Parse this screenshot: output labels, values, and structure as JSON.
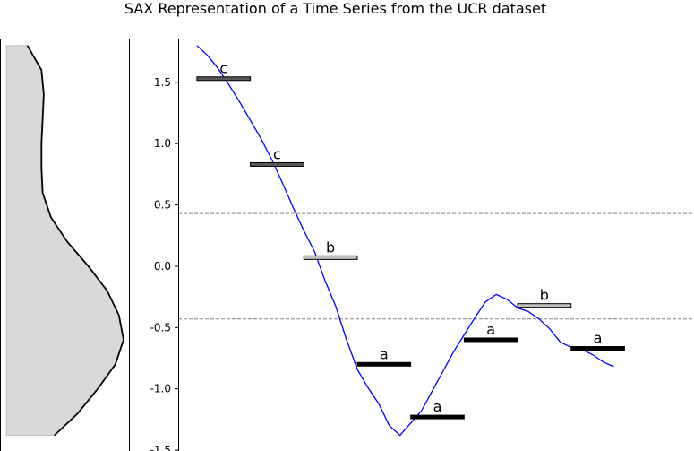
{
  "chart_data": [
    {
      "type": "area",
      "title": "SAX Representation of a Time Series from the UCR dataset",
      "subtype": "marginal-density",
      "colors": {
        "fill": "#d9d9d9",
        "line": "#000000"
      },
      "y": [
        1.8,
        1.6,
        1.4,
        1.2,
        1.0,
        0.8,
        0.6,
        0.4,
        0.2,
        0.0,
        -0.2,
        -0.4,
        -0.6,
        -0.8,
        -1.0,
        -1.2,
        -1.38
      ],
      "density": [
        0.18,
        0.3,
        0.32,
        0.31,
        0.3,
        0.3,
        0.31,
        0.38,
        0.52,
        0.7,
        0.86,
        0.96,
        1.0,
        0.93,
        0.78,
        0.61,
        0.41
      ]
    },
    {
      "type": "line",
      "ylim": [
        -1.5,
        1.85
      ],
      "yticks": [
        -1.5,
        -1.0,
        -0.5,
        0.0,
        0.5,
        1.0,
        1.5
      ],
      "ytick_labels": [
        "-1.5",
        "-1.0",
        "-0.5",
        "0.0",
        "0.5",
        "1.0",
        "1.5"
      ],
      "xlim": [
        -3.5,
        93
      ],
      "grid": false,
      "breakpoints": [
        -0.43,
        0.43
      ],
      "series": [
        {
          "color": "#0000ff",
          "x": [
            0,
            2,
            4,
            6,
            8,
            10,
            12,
            14,
            16,
            18,
            20,
            22,
            24,
            26,
            28,
            30,
            32,
            34,
            36,
            38,
            40,
            42,
            44,
            46,
            47,
            48,
            50,
            52,
            54,
            56,
            58,
            60,
            62,
            64,
            66,
            68,
            70,
            72,
            74,
            76,
            78,
            80,
            82,
            84,
            86,
            88,
            90
          ],
          "values": [
            1.8,
            1.72,
            1.61,
            1.48,
            1.34,
            1.19,
            1.04,
            0.87,
            0.68,
            0.48,
            0.29,
            0.12,
            -0.12,
            -0.33,
            -0.6,
            -0.84,
            -0.99,
            -1.12,
            -1.3,
            -1.38,
            -1.28,
            -1.18,
            -1.02,
            -0.86,
            -0.78,
            -0.7,
            -0.56,
            -0.42,
            -0.29,
            -0.23,
            -0.27,
            -0.34,
            -0.37,
            -0.43,
            -0.51,
            -0.62,
            -0.66,
            -0.68,
            -0.72,
            -0.78,
            -0.82,
            null,
            null,
            null,
            null,
            null,
            null
          ]
        }
      ],
      "segments": [
        {
          "letter": "c",
          "value": 1.53,
          "x_start": 0,
          "x_end": 10,
          "color": "#595959"
        },
        {
          "letter": "c",
          "value": 0.83,
          "x_start": 10,
          "x_end": 20,
          "color": "#595959"
        },
        {
          "letter": "b",
          "value": 0.07,
          "x_start": 20,
          "x_end": 30,
          "color": "#bfbfbf"
        },
        {
          "letter": "a",
          "value": -0.8,
          "x_start": 30,
          "x_end": 40,
          "color": "#000000"
        },
        {
          "letter": "a",
          "value": -1.23,
          "x_start": 40,
          "x_end": 50,
          "color": "#000000"
        },
        {
          "letter": "a",
          "value": -0.6,
          "x_start": 50,
          "x_end": 60,
          "color": "#000000"
        },
        {
          "letter": "b",
          "value": -0.32,
          "x_start": 60,
          "x_end": 70,
          "color": "#bfbfbf"
        },
        {
          "letter": "a",
          "value": -0.67,
          "x_start": 70,
          "x_end": 80,
          "color": "#000000"
        }
      ]
    }
  ]
}
